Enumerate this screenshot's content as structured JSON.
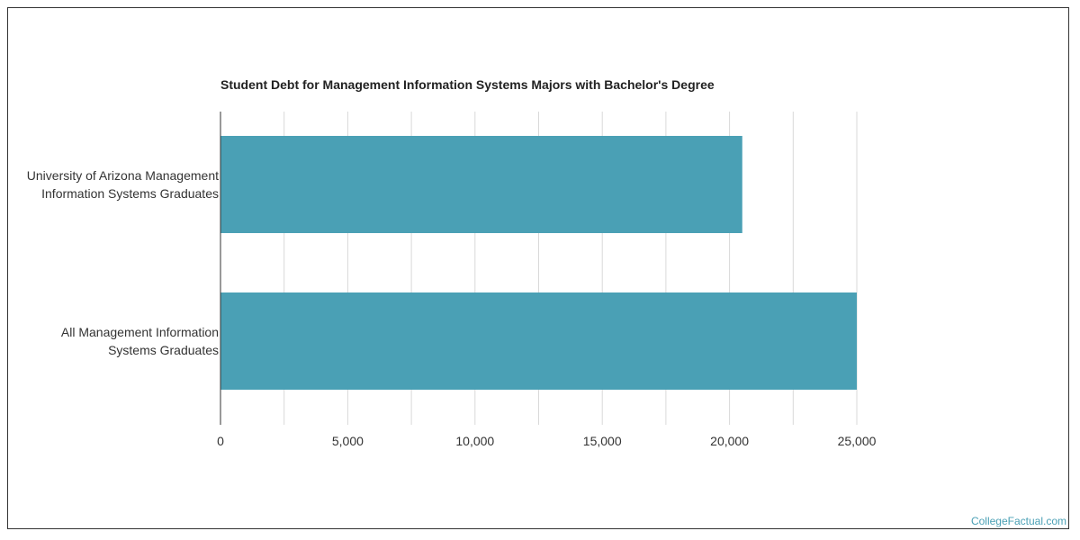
{
  "brand": "CollegeFactual.com",
  "colors": {
    "bar": "#4aa0b5",
    "grid": "#d9d9d9",
    "axis": "#333333"
  },
  "chart_data": {
    "type": "bar",
    "orientation": "horizontal",
    "title": "Student Debt for Management Information Systems Majors with Bachelor's Degree",
    "categories": [
      [
        "University of Arizona Management",
        "Information Systems Graduates"
      ],
      [
        "All Management Information",
        "Systems Graduates"
      ]
    ],
    "values": [
      20500,
      25000
    ],
    "xlim": [
      0,
      30000
    ],
    "xticks": [
      0,
      5000,
      10000,
      15000,
      20000,
      25000
    ],
    "xtick_labels": [
      "0",
      "5,000",
      "10,000",
      "15,000",
      "20,000",
      "25,000"
    ],
    "grid": true
  }
}
